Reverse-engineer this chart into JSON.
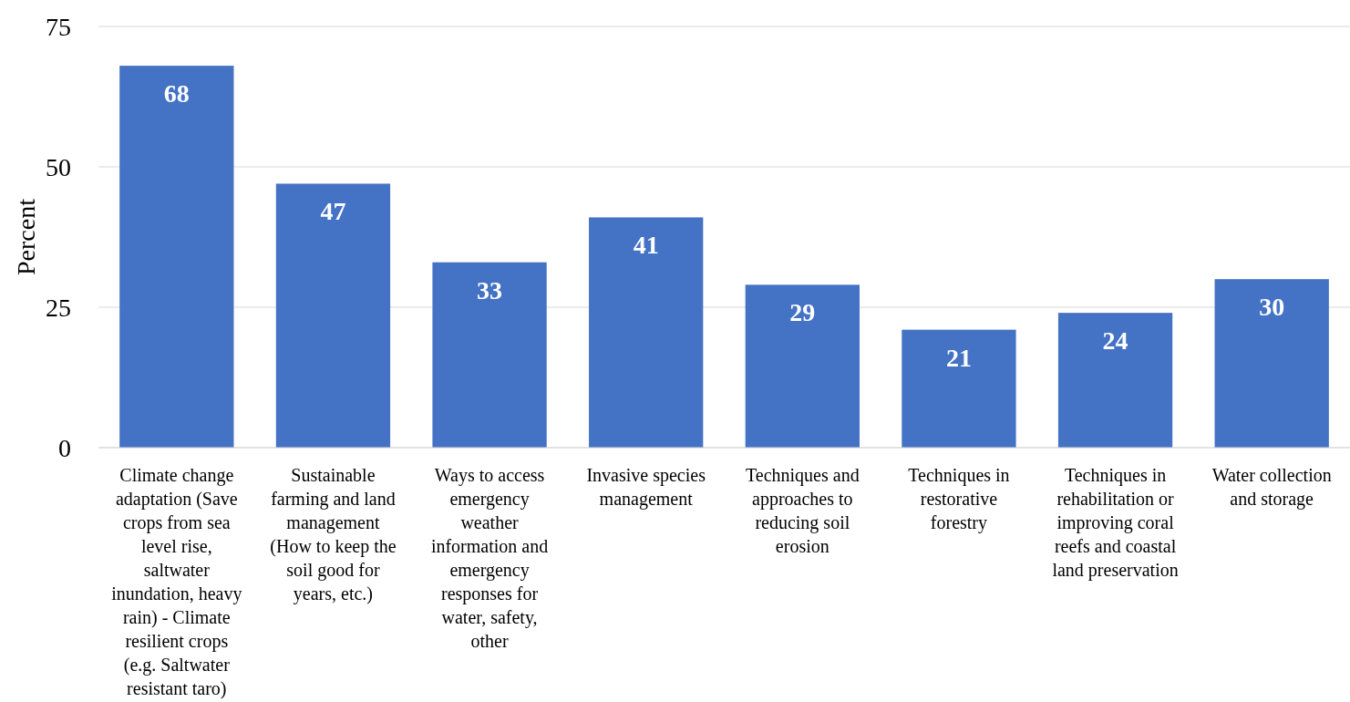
{
  "chart_data": {
    "type": "bar",
    "ylabel": "Percent",
    "categories": [
      "Climate change adaptation (Save crops from sea level rise, saltwater inundation, heavy rain) - Climate resilient crops (e.g. Saltwater resistant taro)",
      "Sustainable farming and land management (How to keep the soil good for years, etc.)",
      "Ways to access emergency weather information and emergency responses for water, safety, other",
      "Invasive species management",
      "Techniques and approaches to reducing soil erosion",
      "Techniques in restorative forestry",
      "Techniques in rehabilitation or improving coral reefs and coastal land preservation",
      "Water collection and storage"
    ],
    "values": [
      68,
      47,
      33,
      41,
      29,
      21,
      24,
      30
    ],
    "color": "#4472c4",
    "ylim": [
      0,
      75
    ],
    "yticks": [
      0,
      25,
      50,
      75
    ],
    "grid": "y",
    "data_labels": true
  }
}
